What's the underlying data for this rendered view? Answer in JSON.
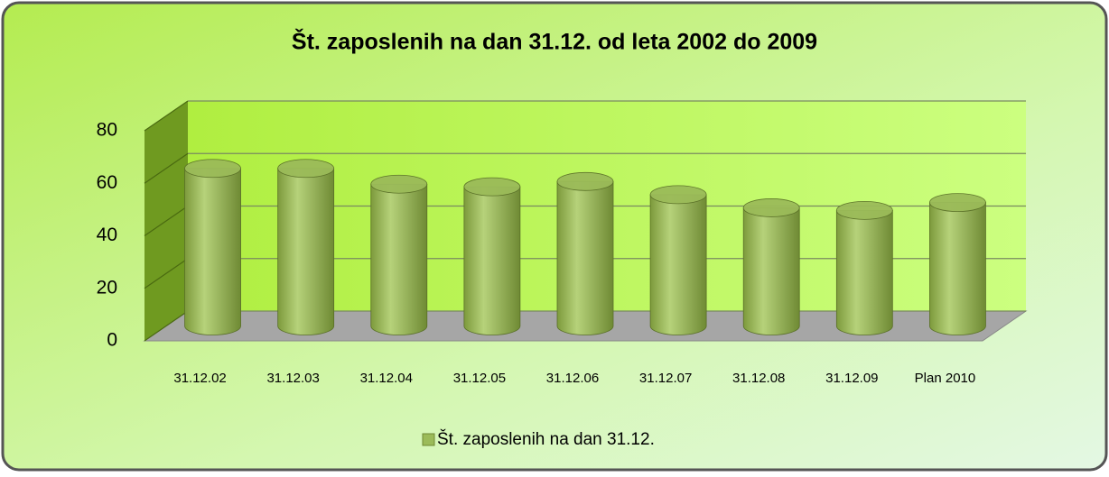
{
  "chart_data": {
    "type": "bar3d",
    "title": "Št. zaposlenih na dan 31.12. od leta 2002 do 2009",
    "categories": [
      "31.12.02",
      "31.12.03",
      "31.12.04",
      "31.12.05",
      "31.12.06",
      "31.12.07",
      "31.12.08",
      "31.12.09",
      "Plan 2010"
    ],
    "series": [
      {
        "name": "Št. zaposlenih na dan 31.12.",
        "color": "#9bbb59",
        "values": [
          60,
          60,
          54,
          53,
          55,
          50,
          45,
          44,
          47
        ]
      }
    ],
    "ylim": [
      0,
      80
    ],
    "yticks": [
      0,
      20,
      40,
      60,
      80
    ],
    "grid": true,
    "legend": "bottom"
  }
}
